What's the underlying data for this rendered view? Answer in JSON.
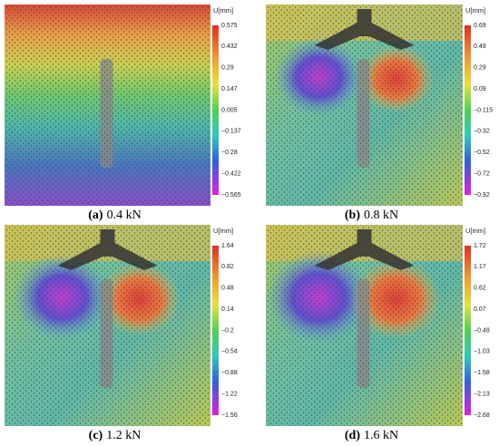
{
  "panels": [
    {
      "label": "(a)",
      "caption": "0.4 kN",
      "colorbar": {
        "title": "U[mm]",
        "ticks": [
          "0.575",
          "0.432",
          "0.29",
          "0.147",
          "0.005",
          "−0.137",
          "−0.28",
          "−0.422",
          "−0.565"
        ]
      }
    },
    {
      "label": "(b)",
      "caption": "0.8 kN",
      "colorbar": {
        "title": "U[mm]",
        "ticks": [
          "0.69",
          "0.49",
          "0.29",
          "0.09",
          "−0.115",
          "−0.32",
          "−0.52",
          "−0.72",
          "−0.92"
        ]
      }
    },
    {
      "label": "(c)",
      "caption": "1.2 kN",
      "colorbar": {
        "title": "U[mm]",
        "ticks": [
          "1.64",
          "0.82",
          "0.48",
          "0.14",
          "−0.2",
          "−0.54",
          "−0.88",
          "−1.22",
          "−1.56"
        ]
      }
    },
    {
      "label": "(d)",
      "caption": "1.6 kN",
      "colorbar": {
        "title": "U[mm]",
        "ticks": [
          "1.72",
          "1.17",
          "0.62",
          "0.07",
          "−0.48",
          "−1.03",
          "−1.58",
          "−2.13",
          "−2.68"
        ]
      }
    }
  ]
}
